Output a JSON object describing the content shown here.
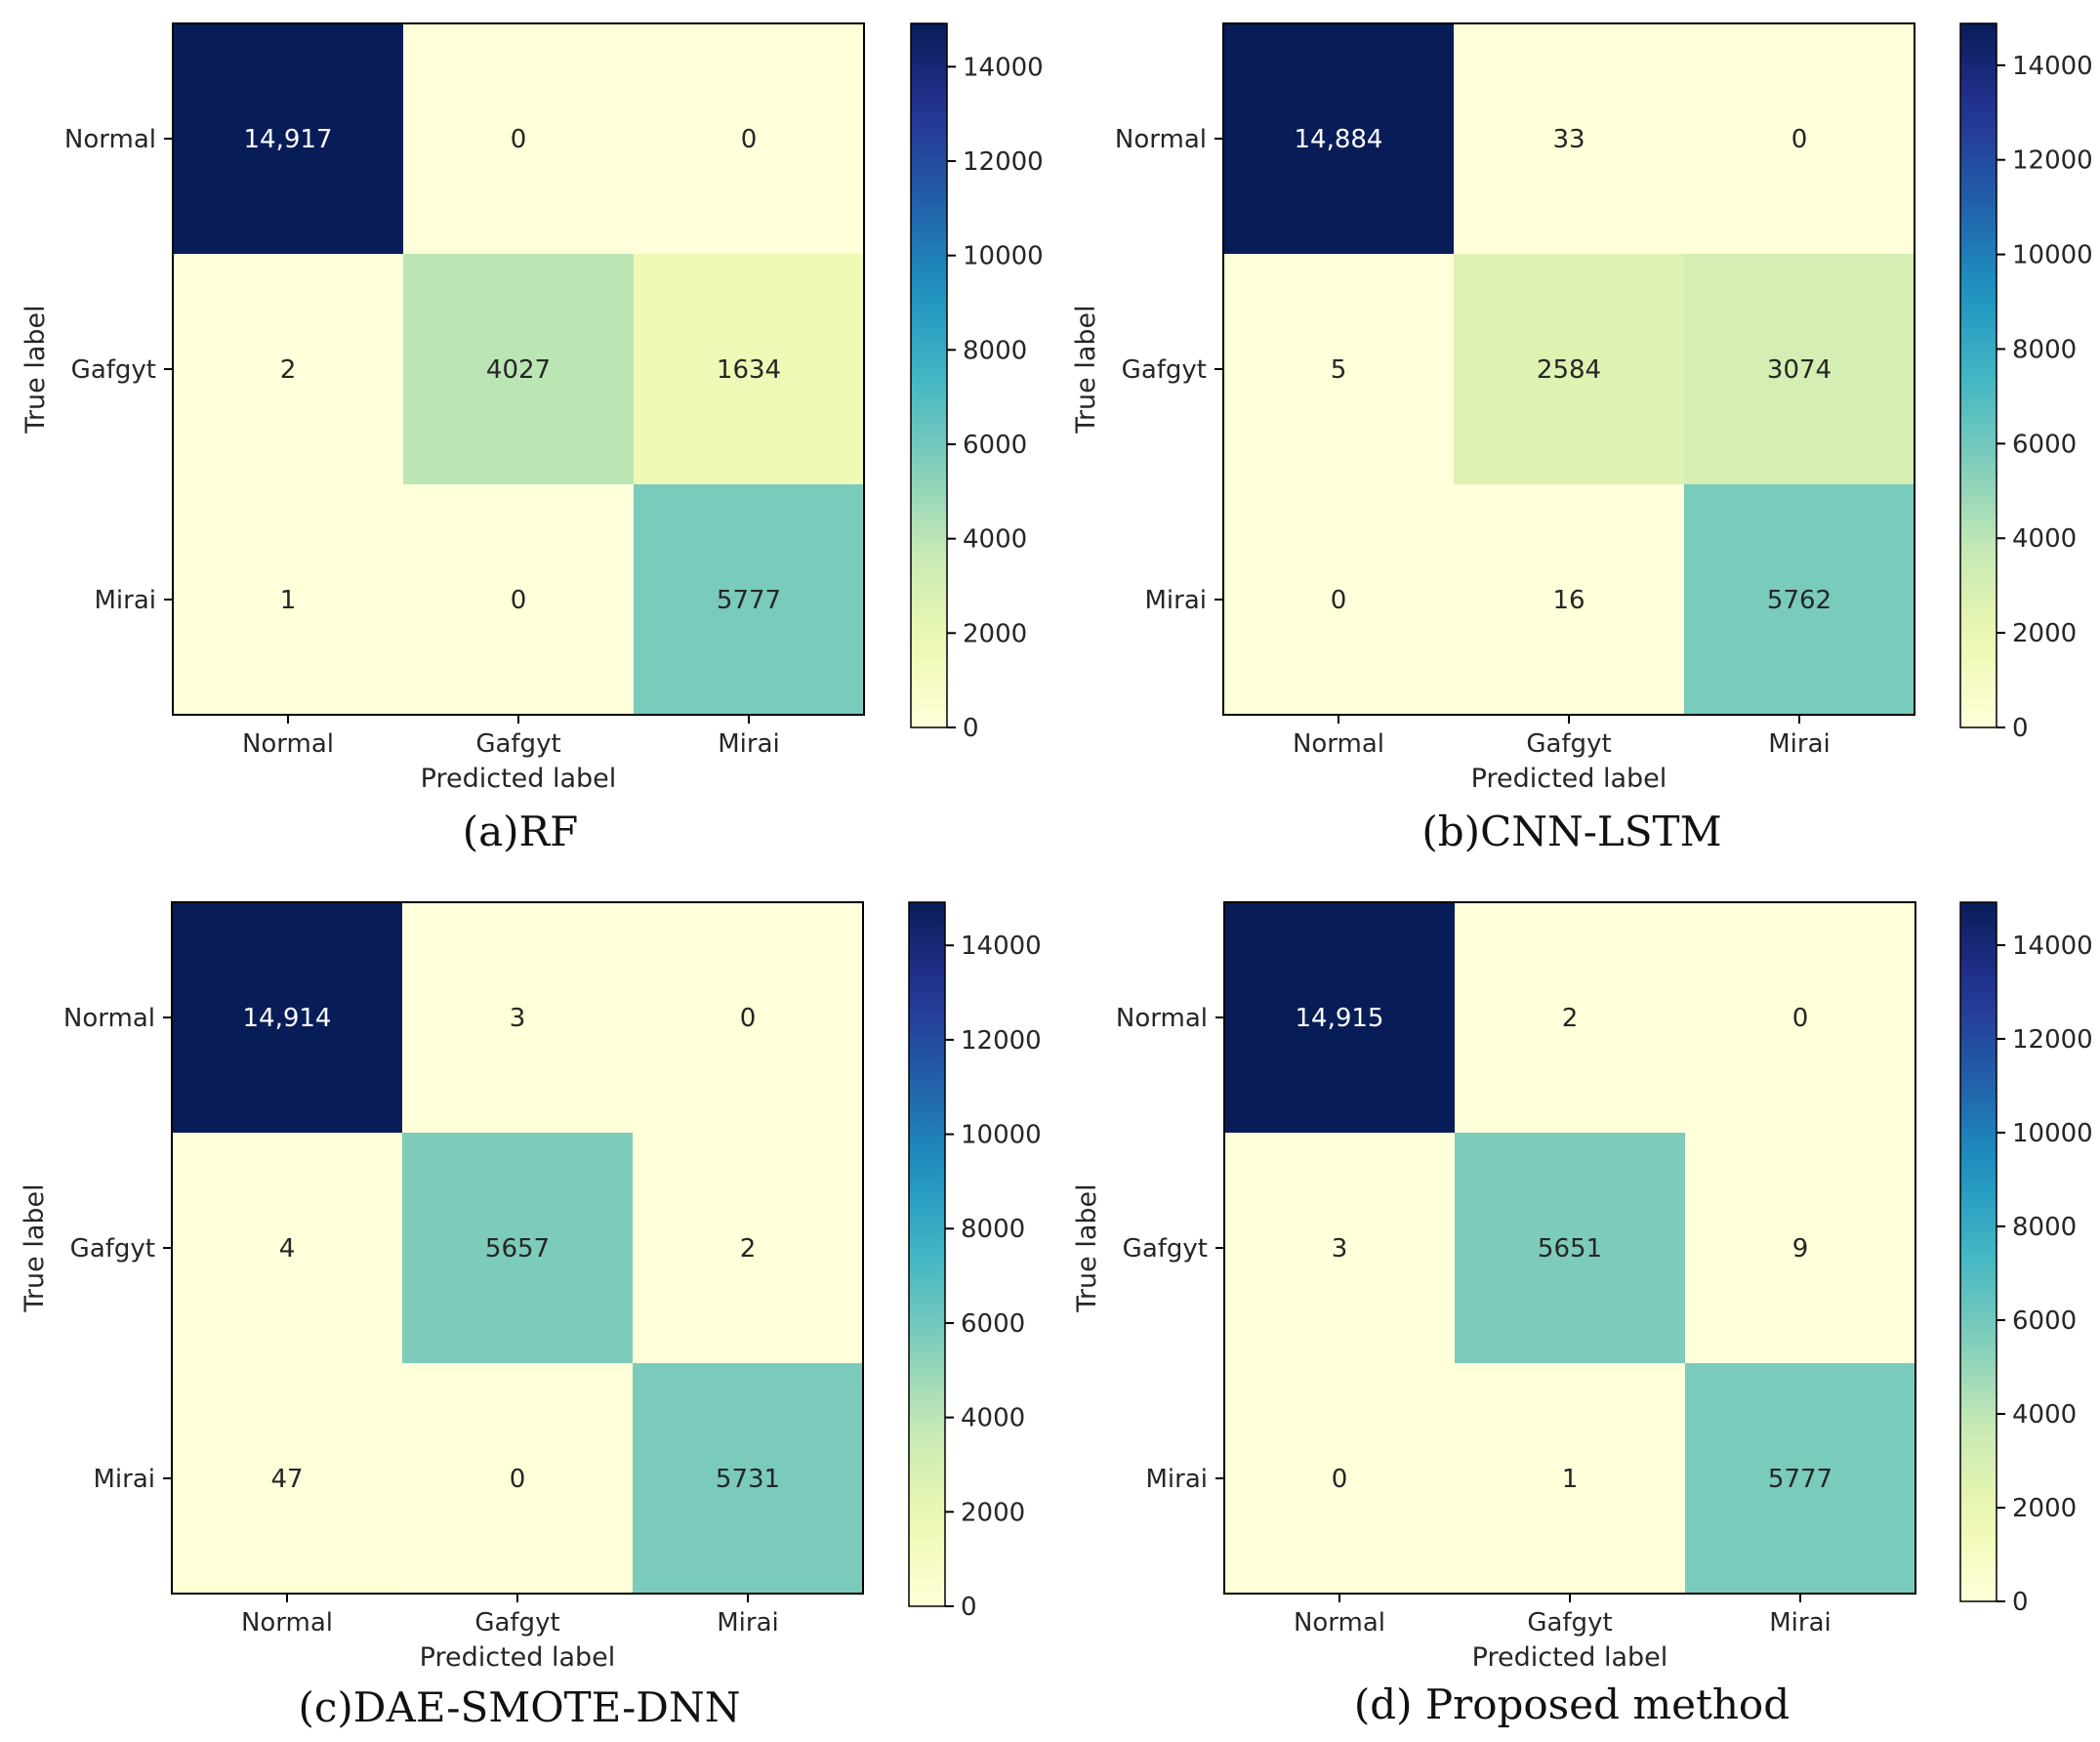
{
  "chart_data": [
    {
      "type": "heatmap",
      "caption": "(a)RF",
      "xlabel": "Predicted label",
      "ylabel": "True label",
      "categories": [
        "Normal",
        "Gafgyt",
        "Mirai"
      ],
      "matrix": [
        [
          14917,
          0,
          0
        ],
        [
          2,
          4027,
          1634
        ],
        [
          1,
          0,
          5777
        ]
      ],
      "cell_labels": [
        [
          "14,917",
          "0",
          "0"
        ],
        [
          "2",
          "4027",
          "1634"
        ],
        [
          "1",
          "0",
          "5777"
        ]
      ],
      "colorbar": {
        "range": [
          0,
          14917
        ],
        "ticks": [
          0,
          2000,
          4000,
          6000,
          8000,
          10000,
          12000,
          14000
        ]
      }
    },
    {
      "type": "heatmap",
      "caption": "(b)CNN-LSTM",
      "xlabel": "Predicted label",
      "ylabel": "True label",
      "categories": [
        "Normal",
        "Gafgyt",
        "Mirai"
      ],
      "matrix": [
        [
          14884,
          33,
          0
        ],
        [
          5,
          2584,
          3074
        ],
        [
          0,
          16,
          5762
        ]
      ],
      "cell_labels": [
        [
          "14,884",
          "33",
          "0"
        ],
        [
          "5",
          "2584",
          "3074"
        ],
        [
          "0",
          "16",
          "5762"
        ]
      ],
      "colorbar": {
        "range": [
          0,
          14884
        ],
        "ticks": [
          0,
          2000,
          4000,
          6000,
          8000,
          10000,
          12000,
          14000
        ]
      }
    },
    {
      "type": "heatmap",
      "caption": "(c)DAE-SMOTE-DNN",
      "xlabel": "Predicted label",
      "ylabel": "True label",
      "categories": [
        "Normal",
        "Gafgyt",
        "Mirai"
      ],
      "matrix": [
        [
          14914,
          3,
          0
        ],
        [
          4,
          5657,
          2
        ],
        [
          47,
          0,
          5731
        ]
      ],
      "cell_labels": [
        [
          "14,914",
          "3",
          "0"
        ],
        [
          "4",
          "5657",
          "2"
        ],
        [
          "47",
          "0",
          "5731"
        ]
      ],
      "colorbar": {
        "range": [
          0,
          14914
        ],
        "ticks": [
          0,
          2000,
          4000,
          6000,
          8000,
          10000,
          12000,
          14000
        ]
      }
    },
    {
      "type": "heatmap",
      "caption": "(d) Proposed method",
      "xlabel": "Predicted label",
      "ylabel": "True label",
      "categories": [
        "Normal",
        "Gafgyt",
        "Mirai"
      ],
      "matrix": [
        [
          14915,
          2,
          0
        ],
        [
          3,
          5651,
          9
        ],
        [
          0,
          1,
          5777
        ]
      ],
      "cell_labels": [
        [
          "14,915",
          "2",
          "0"
        ],
        [
          "3",
          "5651",
          "9"
        ],
        [
          "0",
          "1",
          "5777"
        ]
      ],
      "colorbar": {
        "range": [
          0,
          14915
        ],
        "ticks": [
          0,
          2000,
          4000,
          6000,
          8000,
          10000,
          12000,
          14000
        ]
      }
    }
  ],
  "colormap": [
    "#ffffd9",
    "#edf8b1",
    "#c7e9b4",
    "#7fcdbb",
    "#41b6c4",
    "#1d91c0",
    "#225ea8",
    "#253494",
    "#081d58"
  ]
}
